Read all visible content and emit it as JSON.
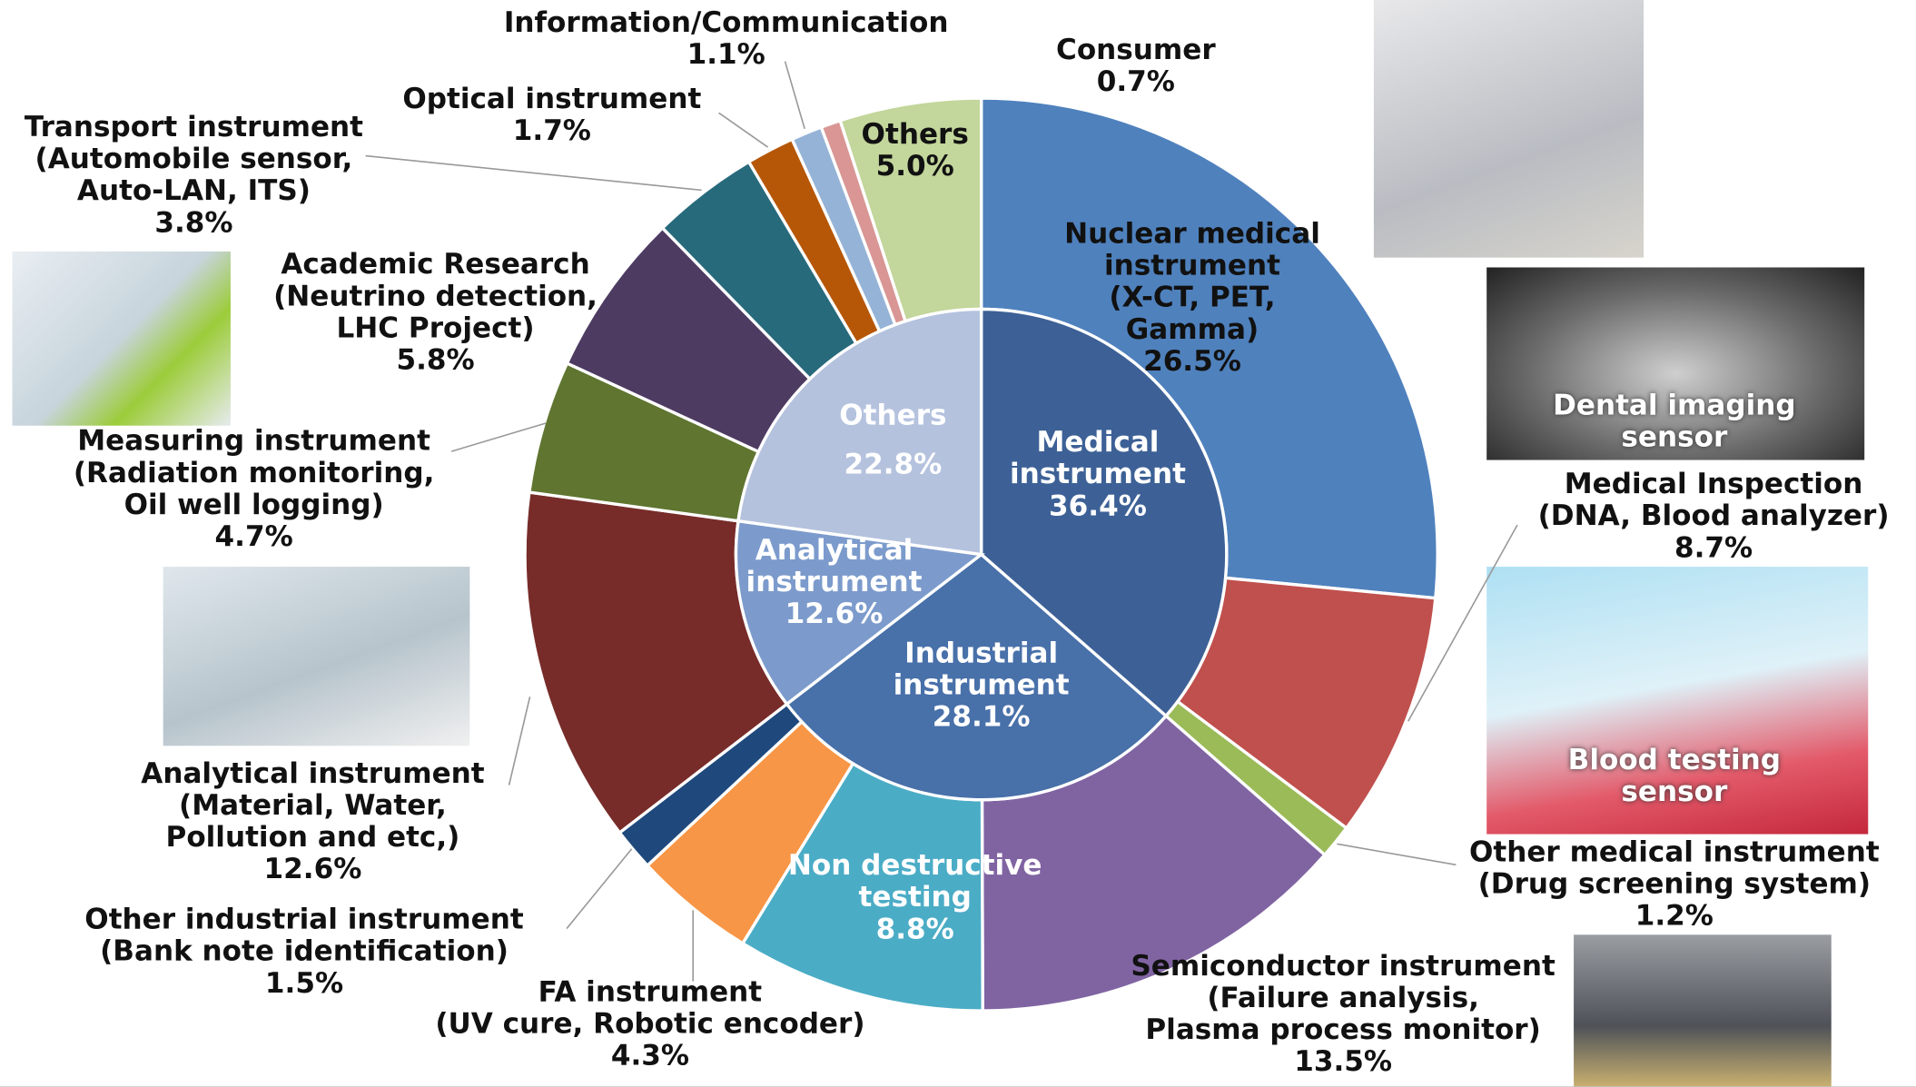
{
  "chart_data": {
    "type": "pie",
    "rings": [
      {
        "categories": [
          "Medical\ninstrument",
          "Industrial\ninstrument",
          "Analytical\ninstrument",
          "Others"
        ],
        "values": [
          36.4,
          28.1,
          12.6,
          22.8
        ],
        "value_labels": [
          "36.4%",
          "28.1%",
          "12.6%",
          "22.8%"
        ],
        "colors": [
          "#3d6196",
          "#4870a9",
          "#7c9bcc",
          "#b4c2de"
        ]
      },
      {
        "categories": [
          "Nuclear medical\ninstrument\n(X-CT, PET,\nGamma)",
          "Medical Inspection\n(DNA, Blood analyzer)",
          "Other medical instrument\n(Drug screening system)",
          "Semiconductor instrument\n(Failure analysis,\nPlasma process monitor)",
          "Non destructive\ntesting",
          "FA instrument\n(UV cure, Robotic encoder)",
          "Other industrial instrument\n(Bank note identification)",
          "Analytical instrument\n(Material, Water,\nPollution and etc,)",
          "Measuring instrument\n(Radiation monitoring,\nOil well logging)",
          "Academic Research\n(Neutrino detection,\nLHC Project)",
          "Transport instrument\n(Automobile sensor,\nAuto-LAN, ITS)",
          "Optical instrument",
          "Information/Communication",
          "Consumer",
          "Others"
        ],
        "values": [
          26.5,
          8.7,
          1.2,
          13.5,
          8.8,
          4.3,
          1.5,
          12.6,
          4.7,
          5.8,
          3.8,
          1.7,
          1.1,
          0.7,
          5.0
        ],
        "value_labels": [
          "26.5%",
          "8.7%",
          "1.2%",
          "13.5%",
          "8.8%",
          "4.3%",
          "1.5%",
          "12.6%",
          "4.7%",
          "5.8%",
          "3.8%",
          "1.7%",
          "1.1%",
          "0.7%",
          "5.0%"
        ],
        "colors": [
          "#4f81bd",
          "#c0504d",
          "#9bbb59",
          "#8064a2",
          "#4bacc6",
          "#f79646",
          "#1f497d",
          "#772c2a",
          "#5f7530",
          "#4d3b62",
          "#276a7c",
          "#b65708",
          "#95b3d7",
          "#d99694",
          "#c3d69b"
        ]
      }
    ],
    "annotations": [
      "Dental imaging\nsensor",
      "Blood testing\nsensor"
    ]
  }
}
